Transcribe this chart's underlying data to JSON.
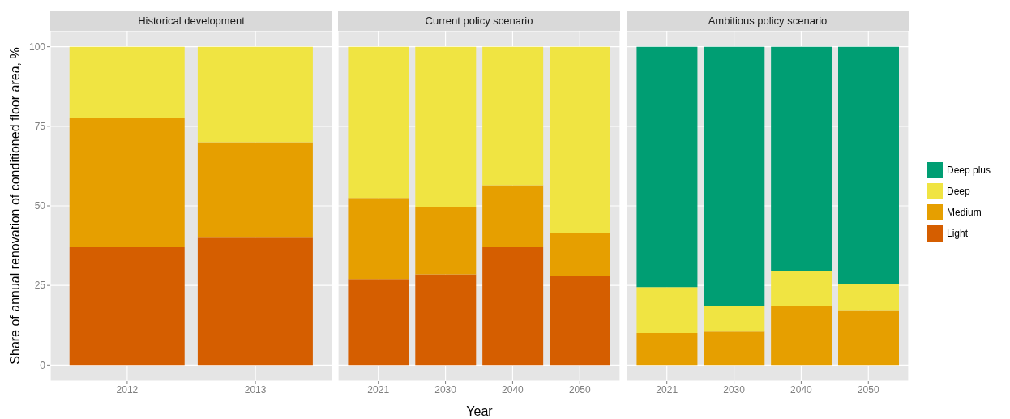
{
  "chart_data": [
    {
      "type": "bar",
      "title": "Historical development",
      "ylabel": "Share of annual renovation of conditioned floor area, %",
      "categories": [
        "2012",
        "2013"
      ],
      "stacked": true,
      "ylim": [
        -5,
        105
      ],
      "yticks": [
        0,
        25,
        50,
        75,
        100
      ],
      "grid": true,
      "legend": "right",
      "series": [
        {
          "name": "Light",
          "color": "#d55e00",
          "values": [
            37,
            40
          ]
        },
        {
          "name": "Medium",
          "color": "#e69f00",
          "values": [
            40.5,
            30
          ]
        },
        {
          "name": "Deep",
          "color": "#f0e442",
          "values": [
            22.5,
            30
          ]
        }
      ]
    },
    {
      "type": "bar",
      "title": "Current policy scenario",
      "xlabel": "Year",
      "categories": [
        "2021",
        "2030",
        "2040",
        "2050"
      ],
      "stacked": true,
      "ylim": [
        -5,
        105
      ],
      "yticks": [
        0,
        25,
        50,
        75,
        100
      ],
      "grid": true,
      "tick_labels": "x",
      "legend": "right",
      "series": [
        {
          "name": "Light",
          "color": "#d55e00",
          "values": [
            27,
            28.5,
            37,
            28
          ]
        },
        {
          "name": "Medium",
          "color": "#e69f00",
          "values": [
            25.5,
            21,
            19.5,
            13.5
          ]
        },
        {
          "name": "Deep",
          "color": "#f0e442",
          "values": [
            47.5,
            50.5,
            43.5,
            58.5
          ]
        }
      ]
    },
    {
      "type": "bar",
      "title": "Ambitious policy scenario",
      "categories": [
        "2021",
        "2030",
        "2040",
        "2050"
      ],
      "stacked": true,
      "ylim": [
        -5,
        105
      ],
      "yticks": [
        0,
        25,
        50,
        75,
        100
      ],
      "grid": true,
      "tick_labels": "x",
      "legend": "right",
      "series": [
        {
          "name": "Medium",
          "color": "#e69f00",
          "values": [
            10,
            10.5,
            18.5,
            17
          ]
        },
        {
          "name": "Deep",
          "color": "#f0e442",
          "values": [
            14.5,
            8,
            11,
            8.5
          ]
        },
        {
          "name": "Deep plus",
          "color": "#009e73",
          "values": [
            75.5,
            81.5,
            70.5,
            74.5
          ]
        }
      ]
    }
  ]
}
